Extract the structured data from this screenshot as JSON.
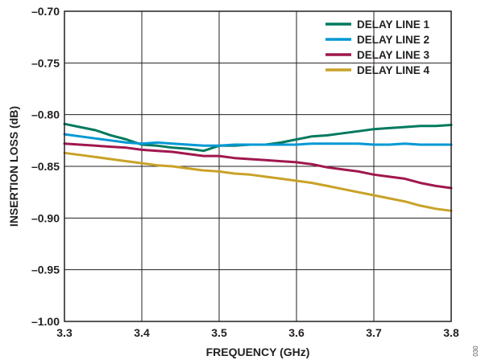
{
  "chart_data": {
    "type": "line",
    "xlabel": "FREQUENCY (GHz)",
    "ylabel": "INSERTION LOSS (dB)",
    "xlim": [
      3.3,
      3.8
    ],
    "ylim": [
      -1.0,
      -0.7
    ],
    "xticks": [
      3.3,
      3.4,
      3.5,
      3.6,
      3.7,
      3.8
    ],
    "xtick_labels": [
      "3.3",
      "3.4",
      "3.5",
      "3.6",
      "3.7",
      "3.8"
    ],
    "yticks": [
      -0.7,
      -0.75,
      -0.8,
      -0.85,
      -0.9,
      -0.95,
      -1.0
    ],
    "ytick_labels": [
      "–0.70",
      "–0.75",
      "–0.80",
      "–0.85",
      "–0.90",
      "–0.95",
      "–1.00"
    ],
    "grid": true,
    "legend_position": "top-right",
    "figure_id": "030",
    "x": [
      3.3,
      3.32,
      3.34,
      3.36,
      3.38,
      3.4,
      3.42,
      3.44,
      3.46,
      3.48,
      3.5,
      3.52,
      3.54,
      3.56,
      3.58,
      3.6,
      3.62,
      3.64,
      3.66,
      3.68,
      3.7,
      3.72,
      3.74,
      3.76,
      3.78,
      3.8
    ],
    "series": [
      {
        "name": "DELAY LINE 1",
        "color": "#007a5e",
        "values": [
          -0.809,
          -0.812,
          -0.815,
          -0.82,
          -0.824,
          -0.829,
          -0.83,
          -0.832,
          -0.833,
          -0.835,
          -0.83,
          -0.83,
          -0.829,
          -0.829,
          -0.827,
          -0.824,
          -0.821,
          -0.82,
          -0.818,
          -0.816,
          -0.814,
          -0.813,
          -0.812,
          -0.811,
          -0.811,
          -0.81
        ]
      },
      {
        "name": "DELAY LINE 2",
        "color": "#0098d4",
        "values": [
          -0.819,
          -0.821,
          -0.823,
          -0.825,
          -0.827,
          -0.828,
          -0.827,
          -0.828,
          -0.829,
          -0.83,
          -0.83,
          -0.829,
          -0.829,
          -0.829,
          -0.829,
          -0.829,
          -0.828,
          -0.828,
          -0.828,
          -0.828,
          -0.829,
          -0.829,
          -0.828,
          -0.829,
          -0.829,
          -0.829
        ]
      },
      {
        "name": "DELAY LINE 3",
        "color": "#a0174e",
        "values": [
          -0.828,
          -0.829,
          -0.83,
          -0.831,
          -0.832,
          -0.834,
          -0.835,
          -0.836,
          -0.838,
          -0.84,
          -0.84,
          -0.842,
          -0.843,
          -0.844,
          -0.845,
          -0.846,
          -0.848,
          -0.851,
          -0.853,
          -0.855,
          -0.858,
          -0.86,
          -0.862,
          -0.866,
          -0.869,
          -0.871
        ]
      },
      {
        "name": "DELAY LINE 4",
        "color": "#c9a227",
        "values": [
          -0.837,
          -0.839,
          -0.841,
          -0.843,
          -0.845,
          -0.847,
          -0.849,
          -0.85,
          -0.852,
          -0.854,
          -0.855,
          -0.857,
          -0.858,
          -0.86,
          -0.862,
          -0.864,
          -0.866,
          -0.869,
          -0.872,
          -0.875,
          -0.878,
          -0.881,
          -0.884,
          -0.888,
          -0.891,
          -0.893
        ]
      }
    ]
  }
}
